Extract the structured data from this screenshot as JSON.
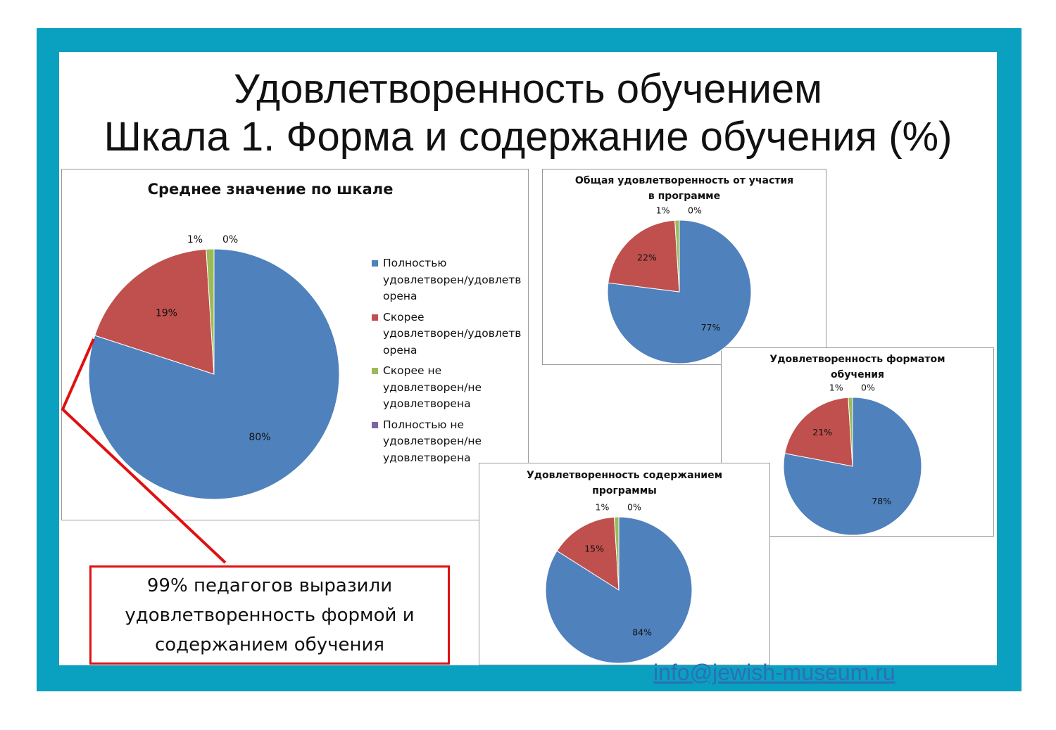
{
  "slide": {
    "title_line1": "Удовлетворенность обучением",
    "title_line2": "Шкала 1. Форма и содержание обучения (%)",
    "callout": "99% педагогов выразили удовлетворенность формой и содержанием обучения",
    "email": "info@jewish-museum.ru"
  },
  "colors": {
    "frame": "#0aa0c0",
    "callout_border": "#e01010"
  },
  "legend": [
    {
      "label": "Полностью удовлетворен/удовлетворена",
      "lines": [
        "Полностью",
        "удовлетворен/удовлетв",
        "орена"
      ],
      "color": "#4f81bd"
    },
    {
      "label": "Скорее удовлетворен/удовлетворена",
      "lines": [
        "Скорее",
        "удовлетворен/удовлетв",
        "орена"
      ],
      "color": "#c0504d"
    },
    {
      "label": "Скорее не удовлетворен/не удовлетворена",
      "lines": [
        "Скорее не",
        "удовлетворен/не",
        "удовлетворена"
      ],
      "color": "#9bbb59"
    },
    {
      "label": "Полностью не удовлетворен/не удовлетворена",
      "lines": [
        "Полностью не",
        "удовлетворен/не",
        "удовлетворена"
      ],
      "color": "#8064a2"
    }
  ],
  "chart_data": [
    {
      "type": "pie",
      "title": "Среднее значение по шкале",
      "values": [
        80,
        19,
        1,
        0
      ],
      "labels": [
        "80%",
        "19%",
        "1%",
        "0%"
      ],
      "legend": "right"
    },
    {
      "type": "pie",
      "title": "Общая удовлетворенность от участия в программе",
      "values": [
        77,
        22,
        1,
        0
      ],
      "labels": [
        "77%",
        "22%",
        "1%",
        "0%"
      ]
    },
    {
      "type": "pie",
      "title": "Удовлетворенность форматом обучения",
      "values": [
        78,
        21,
        1,
        0
      ],
      "labels": [
        "78%",
        "21%",
        "1%",
        "0%"
      ]
    },
    {
      "type": "pie",
      "title": "Удовлетворенность содержанием программы",
      "values": [
        84,
        15,
        1,
        0
      ],
      "labels": [
        "84%",
        "15%",
        "1%",
        "0%"
      ]
    }
  ]
}
